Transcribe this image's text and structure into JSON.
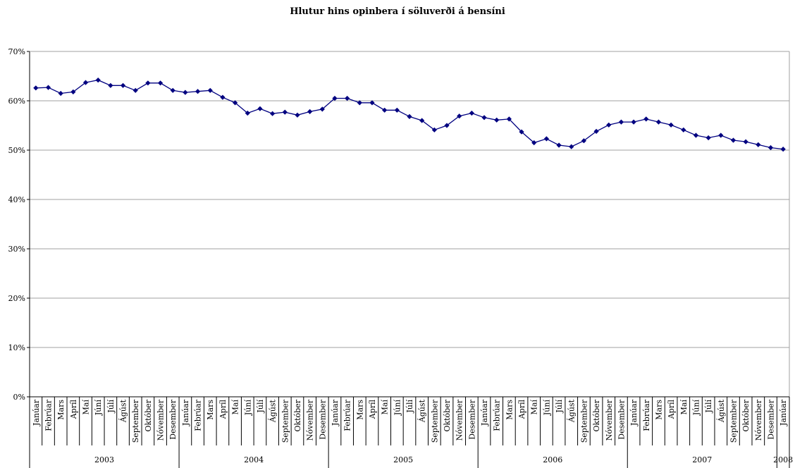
{
  "chart_data": {
    "type": "line",
    "title": "Hlutur hins opinbera í söluverði á bensíni",
    "xlabel": "",
    "ylabel": "",
    "ylim": [
      0,
      70
    ],
    "yticks": [
      "0%",
      "10%",
      "20%",
      "30%",
      "40%",
      "50%",
      "60%",
      "70%"
    ],
    "grid": true,
    "legend": "none",
    "colors": {
      "line": "#000080",
      "marker": "#000080",
      "grid": "#a0a0a0",
      "axis": "#000000"
    },
    "categories": [
      "Janúar",
      "Febrúar",
      "Mars",
      "Apríl",
      "Maí",
      "Júní",
      "Júlí",
      "Ágúst",
      "September",
      "Október",
      "Nóvember",
      "Desember",
      "Janúar",
      "Febrúar",
      "Mars",
      "Apríl",
      "Maí",
      "Júní",
      "Júlí",
      "Ágúst",
      "September",
      "Október",
      "Nóvember",
      "Desember",
      "Janúar",
      "Febrúar",
      "Mars",
      "Apríl",
      "Maí",
      "Júní",
      "Júlí",
      "Ágúst",
      "September",
      "Október",
      "Nóvember",
      "Desember",
      "Janúar",
      "Febrúar",
      "Mars",
      "Apríl",
      "Maí",
      "Júní",
      "Júlí",
      "Ágúst",
      "September",
      "Október",
      "Nóvember",
      "Desember",
      "Janúar",
      "Febrúar",
      "Mars",
      "Apríl",
      "Maí",
      "Júní",
      "Júlí",
      "Ágúst",
      "September",
      "Október",
      "Nóvember",
      "Desember",
      "Janúar"
    ],
    "groups": [
      {
        "label": "2003",
        "count": 12
      },
      {
        "label": "2004",
        "count": 12
      },
      {
        "label": "2005",
        "count": 12
      },
      {
        "label": "2006",
        "count": 12
      },
      {
        "label": "2007",
        "count": 12
      },
      {
        "label": "2008",
        "count": 1
      }
    ],
    "series": [
      {
        "values": [
          62.6,
          62.7,
          61.5,
          61.8,
          63.7,
          64.2,
          63.1,
          63.1,
          62.1,
          63.6,
          63.6,
          62.1,
          61.7,
          61.9,
          62.1,
          60.7,
          59.6,
          57.5,
          58.4,
          57.4,
          57.7,
          57.1,
          57.8,
          58.3,
          60.5,
          60.5,
          59.6,
          59.6,
          58.1,
          58.1,
          56.8,
          56.0,
          54.1,
          55.0,
          56.9,
          57.5,
          56.6,
          56.1,
          56.3,
          53.7,
          51.5,
          52.3,
          51.0,
          50.7,
          51.9,
          53.8,
          55.1,
          55.7,
          55.7,
          56.3,
          55.7,
          55.1,
          54.1,
          53.0,
          52.5,
          53.0,
          52.0,
          51.7,
          51.1,
          50.5,
          50.2
        ]
      }
    ]
  }
}
